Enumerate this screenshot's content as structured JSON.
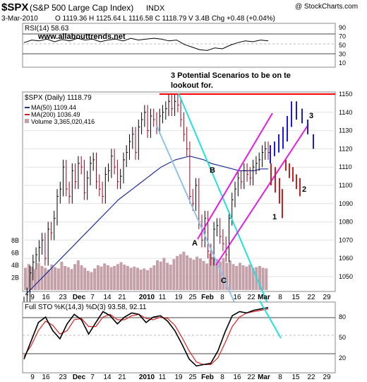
{
  "header": {
    "symbol": "$SPX",
    "name": "(S&P 500 Large Cap Index)",
    "exchange": "INDX",
    "watermark": "@ StockCharts.com",
    "date": "3-Mar-2010",
    "ohlc": "O 1119.36  H 1125.64  L 1116.58  C 1118.79  V 3.4B  Chg +0.48 (+0.04%)"
  },
  "rsi_panel": {
    "label": "RSI(14) 58.63",
    "website": "www.allabouttrends.net",
    "ticks": [
      "90",
      "70",
      "50",
      "30",
      "10"
    ]
  },
  "price_panel": {
    "title_label": "$SPX (Daily) 1118.79",
    "ma50_label": "MA(50) 1109.44",
    "ma200_label": "MA(200) 1036.49",
    "volume_label": "Volume 3,365,020,416",
    "annotation": "3 Potential Scenarios to be on te lookout for.",
    "price_ticks": [
      "1150",
      "1140",
      "1130",
      "1120",
      "1110",
      "1100",
      "1090",
      "1080",
      "1070",
      "1060",
      "1050"
    ],
    "volume_ticks": [
      "8B",
      "6B",
      "4B",
      "2B"
    ],
    "point_labels": [
      "A",
      "B",
      "C"
    ],
    "scenario_labels": [
      "1",
      "2",
      "3"
    ]
  },
  "sto_panel": {
    "label": "Full STO %K(14,3) %D(3) 93.58, 92.11",
    "ticks": [
      "80",
      "50",
      "20"
    ]
  },
  "x_axis": {
    "labels": [
      "9",
      "16",
      "23",
      "Dec",
      "7",
      "14",
      "21",
      "2010",
      "11",
      "19",
      "25",
      "Feb",
      "8",
      "16",
      "22",
      "Mar",
      "8",
      "15",
      "22",
      "29"
    ]
  },
  "colors": {
    "price_bar": "#000000",
    "down_bar": "#a00020",
    "ma50": "#1c2f9a",
    "ma200": "#cc1f1f",
    "volume": "#c4a0a8",
    "resistance": "#ff0000",
    "channel": "#e21be2",
    "line_cyan": "#22e0e0",
    "line_lightblue": "#8fc3ee",
    "annotation": "#ff0000",
    "website": "#1a23d6",
    "scenario1": "#1a1ae0",
    "scenario2": "#1a1ae0",
    "scenario3": "#1a1ae0",
    "point_label": "#dd0000"
  },
  "chart_data": [
    {
      "type": "line",
      "title": "RSI(14) 58.63",
      "series": [
        {
          "name": "RSI(14)",
          "values": [
            56,
            62,
            60,
            64,
            58,
            63,
            60,
            66,
            62,
            64,
            58,
            62,
            64,
            60,
            66,
            62,
            64,
            66,
            64,
            60,
            62,
            52,
            46,
            40,
            38,
            44,
            42,
            50,
            56,
            60,
            58,
            62,
            60
          ]
        }
      ],
      "ylim": [
        0,
        100
      ]
    },
    {
      "type": "bar",
      "title": "$SPX (Daily) 1118.79",
      "ylim": [
        1040,
        1152
      ],
      "series": [
        {
          "name": "$SPX",
          "values": [
            1035,
            1040,
            1052,
            1058,
            1062,
            1066,
            1070,
            1060,
            1076,
            1074,
            1082,
            1094,
            1098,
            1110,
            1098,
            1094,
            1108,
            1102,
            1112,
            1110,
            1096,
            1104,
            1112,
            1114,
            1102,
            1098,
            1094,
            1106,
            1108,
            1116,
            1110,
            1102,
            1105,
            1114,
            1118,
            1124,
            1128,
            1118,
            1132,
            1136,
            1140,
            1130,
            1138,
            1136,
            1132,
            1138,
            1140,
            1142,
            1146,
            1142,
            1146,
            1144,
            1136,
            1128,
            1120,
            1094,
            1090,
            1100,
            1080,
            1070,
            1082,
            1064,
            1060,
            1076,
            1078,
            1072,
            1068,
            1062,
            1082,
            1092,
            1098,
            1104,
            1102,
            1108,
            1106,
            1104,
            1110,
            1112,
            1114,
            1118,
            1120,
            1118
          ]
        },
        {
          "name": "MA(50) 1109.44",
          "values": [
            1040,
            1044,
            1048,
            1052,
            1056,
            1060,
            1064,
            1068,
            1072,
            1076,
            1080,
            1084,
            1088,
            1092,
            1095,
            1098,
            1101,
            1104,
            1107,
            1110,
            1112,
            1114,
            1115,
            1116,
            1115,
            1114,
            1112,
            1111,
            1110,
            1109,
            1108,
            1108,
            1108,
            1109,
            1109
          ]
        },
        {
          "name": "MA(200) 1036.49",
          "values": [
            1036
          ]
        },
        {
          "name": "Volume 3,365,020,416",
          "values": [
            3.6,
            4.2,
            3.8,
            3.4,
            4.4,
            3.9,
            3.6,
            3.3,
            4.1,
            3.7,
            3.5,
            4.6,
            3.9,
            3.7,
            3.4,
            4.2,
            4.8,
            4.0,
            3.6,
            3.1,
            2.9,
            3.5,
            4.0,
            3.8,
            4.3,
            4.0,
            3.7,
            3.9,
            4.2,
            4.5,
            4.1,
            3.9,
            3.6,
            3.8,
            3.6,
            3.3,
            3.5,
            3.2,
            3.6,
            4.0,
            4.8,
            4.6,
            5.2,
            4.4,
            4.1,
            5.0,
            5.5,
            5.8,
            6.2,
            5.6,
            5.2,
            4.9,
            5.4,
            5.1,
            4.7,
            4.3,
            5.9,
            5.4,
            5.0,
            4.6,
            5.2,
            4.4,
            4.8,
            4.2,
            3.9,
            4.4,
            4.0,
            3.8,
            4.1,
            3.6,
            3.7,
            3.9,
            3.6,
            3.5
          ]
        }
      ]
    },
    {
      "type": "line",
      "title": "Full STO %K(14,3) %D(3) 93.58, 92.11",
      "ylim": [
        0,
        100
      ],
      "series": [
        {
          "name": "%K",
          "values": [
            18,
            45,
            72,
            80,
            60,
            48,
            70,
            84,
            76,
            55,
            72,
            88,
            82,
            70,
            80,
            86,
            84,
            72,
            80,
            82,
            74,
            60,
            40,
            18,
            8,
            10,
            12,
            30,
            58,
            82,
            88,
            86,
            90,
            92,
            94
          ]
        },
        {
          "name": "%D",
          "values": [
            22,
            38,
            60,
            74,
            68,
            55,
            60,
            76,
            78,
            66,
            66,
            80,
            84,
            76,
            76,
            82,
            84,
            78,
            76,
            80,
            78,
            68,
            50,
            30,
            14,
            10,
            10,
            20,
            42,
            66,
            80,
            86,
            88,
            90,
            92
          ]
        }
      ]
    }
  ]
}
